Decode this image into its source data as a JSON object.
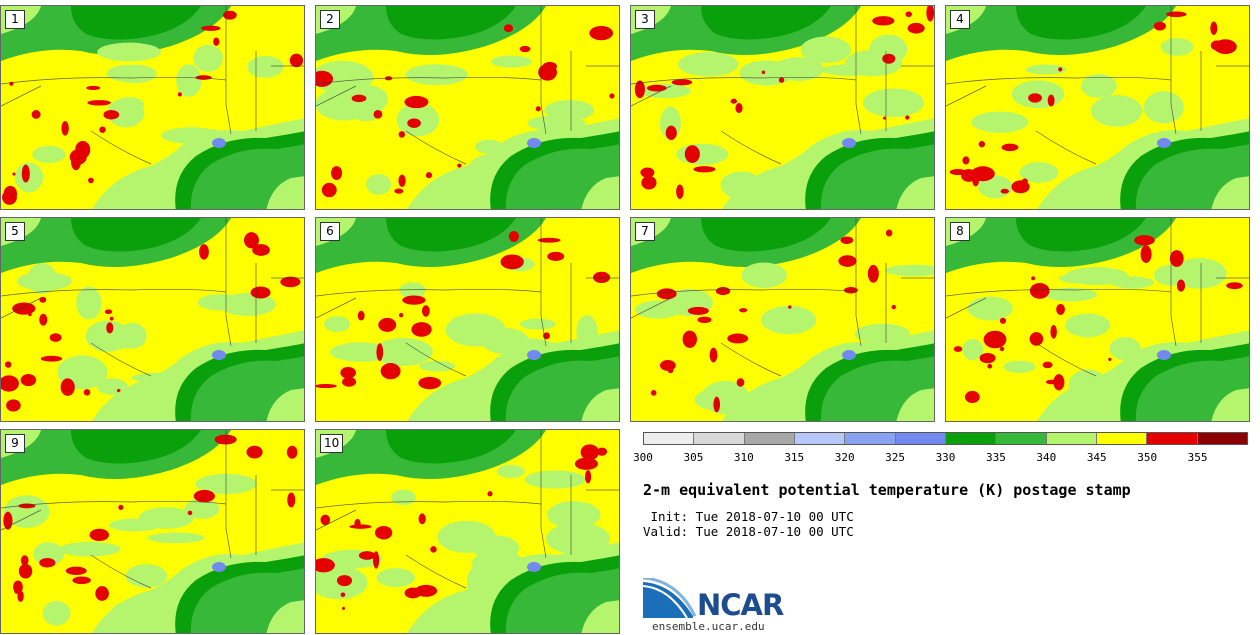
{
  "members": [
    "1",
    "2",
    "3",
    "4",
    "5",
    "6",
    "7",
    "8",
    "9",
    "10"
  ],
  "colorbar": {
    "ticks": [
      "300",
      "305",
      "310",
      "315",
      "320",
      "325",
      "330",
      "335",
      "340",
      "345",
      "350",
      "355"
    ],
    "colors": [
      "#eeeeee",
      "#d8d8d8",
      "#a8a8a8",
      "#b7c8f8",
      "#8aa2f2",
      "#7289f0",
      "#09a00c",
      "#37b838",
      "#b5f56e",
      "#ffff00",
      "#e50000",
      "#8b0000"
    ]
  },
  "title": "2-m equivalent potential temperature (K) postage stamp",
  "init": " Init: Tue 2018-07-10 00 UTC",
  "valid": "Valid: Tue 2018-07-10 00 UTC",
  "logo": {
    "text": "NCAR",
    "site": "ensemble.ucar.edu"
  }
}
